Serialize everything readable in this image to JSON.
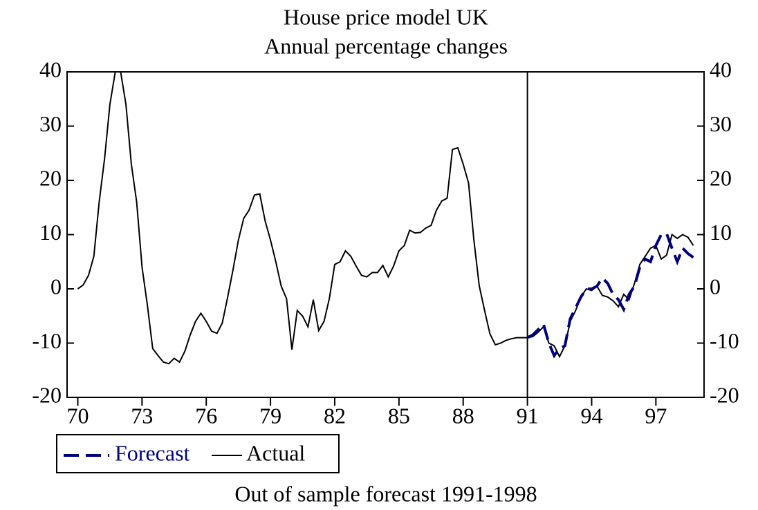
{
  "chart_data": {
    "type": "line",
    "title": "House price model UK",
    "subtitle": "Annual percentage changes",
    "caption": "Out of sample forecast 1991-1998",
    "x": [
      1970,
      1970.25,
      1970.5,
      1970.75,
      1971,
      1971.25,
      1971.5,
      1971.75,
      1972,
      1972.25,
      1972.5,
      1972.75,
      1973,
      1973.25,
      1973.5,
      1973.75,
      1974,
      1974.25,
      1974.5,
      1974.75,
      1975,
      1975.25,
      1975.5,
      1975.75,
      1976,
      1976.25,
      1976.5,
      1976.75,
      1977,
      1977.25,
      1977.5,
      1977.75,
      1978,
      1978.25,
      1978.5,
      1978.75,
      1979,
      1979.25,
      1979.5,
      1979.75,
      1980,
      1980.25,
      1980.5,
      1980.75,
      1981,
      1981.25,
      1981.5,
      1981.75,
      1982,
      1982.25,
      1982.5,
      1982.75,
      1983,
      1983.25,
      1983.5,
      1983.75,
      1984,
      1984.25,
      1984.5,
      1984.75,
      1985,
      1985.25,
      1985.5,
      1985.75,
      1986,
      1986.25,
      1986.5,
      1986.75,
      1987,
      1987.25,
      1987.5,
      1987.75,
      1988,
      1988.25,
      1988.5,
      1988.75,
      1989,
      1989.25,
      1989.5,
      1989.75,
      1990,
      1990.25,
      1990.5,
      1990.75,
      1991,
      1991.25,
      1991.5,
      1991.75,
      1992,
      1992.25,
      1992.5,
      1992.75,
      1993,
      1993.25,
      1993.5,
      1993.75,
      1994,
      1994.25,
      1994.5,
      1994.75,
      1995,
      1995.25,
      1995.5,
      1995.75,
      1996,
      1996.25,
      1996.5,
      1996.75,
      1997,
      1997.25,
      1997.5,
      1997.75,
      1998,
      1998.25,
      1998.5,
      1998.75
    ],
    "series": [
      {
        "name": "Forecast",
        "color": "#000080",
        "dashed": true,
        "values": [
          null,
          null,
          null,
          null,
          null,
          null,
          null,
          null,
          null,
          null,
          null,
          null,
          null,
          null,
          null,
          null,
          null,
          null,
          null,
          null,
          null,
          null,
          null,
          null,
          null,
          null,
          null,
          null,
          null,
          null,
          null,
          null,
          null,
          null,
          null,
          null,
          null,
          null,
          null,
          null,
          null,
          null,
          null,
          null,
          null,
          null,
          null,
          null,
          null,
          null,
          null,
          null,
          null,
          null,
          null,
          null,
          null,
          null,
          null,
          null,
          null,
          null,
          null,
          null,
          null,
          null,
          null,
          null,
          null,
          null,
          null,
          null,
          null,
          null,
          null,
          null,
          null,
          null,
          null,
          null,
          null,
          null,
          null,
          null,
          -9,
          -8.5,
          -7.5,
          -6.5,
          -10,
          -12.3,
          -11,
          -10.5,
          -5.5,
          -3.5,
          -1.5,
          0,
          0,
          0.5,
          2,
          1,
          -1,
          -2,
          -3.8,
          -1,
          0.5,
          4,
          5.5,
          5,
          8,
          10,
          10.2,
          7.5,
          5,
          7.5,
          6.5,
          5.8
        ]
      },
      {
        "name": "Actual",
        "color": "#000000",
        "dashed": false,
        "values": [
          0,
          0.7,
          2.5,
          6,
          16,
          24,
          34,
          40,
          40,
          34,
          23,
          16,
          4,
          -3,
          -11,
          -12.3,
          -13.5,
          -13.8,
          -12.8,
          -13.5,
          -11.5,
          -8.5,
          -6,
          -4.5,
          -6,
          -7.8,
          -8.2,
          -6.3,
          -1.5,
          3.5,
          9,
          13,
          14.5,
          17.3,
          17.5,
          12.5,
          9,
          5,
          0.5,
          -1.8,
          -11.2,
          -4,
          -5,
          -7,
          -2,
          -7.7,
          -6,
          -1.8,
          4.5,
          5,
          7,
          6,
          4.2,
          2.5,
          2.2,
          3,
          3,
          4.3,
          2.2,
          4.2,
          7,
          8,
          10.8,
          10.3,
          10.4,
          11.2,
          11.7,
          14.5,
          16.2,
          16.7,
          25.7,
          26,
          23,
          19.5,
          9,
          0.6,
          -4,
          -8.3,
          -10.3,
          -10,
          -9.5,
          -9.2,
          -9,
          -9,
          -9,
          -8.8,
          -8,
          -7,
          -10,
          -10.5,
          -12.5,
          -10.5,
          -6,
          -4,
          -1.5,
          0,
          -0.3,
          0.5,
          -1.2,
          -1.5,
          -2.2,
          -3.3,
          -1,
          -2,
          1,
          4.5,
          6,
          7.5,
          8,
          5.5,
          6.2,
          10,
          9.3,
          10,
          9.5,
          8
        ]
      }
    ],
    "xlim": [
      1969.5,
      1999.25
    ],
    "xticks": [
      {
        "value": 1970,
        "label": "70"
      },
      {
        "value": 1973,
        "label": "73"
      },
      {
        "value": 1976,
        "label": "76"
      },
      {
        "value": 1979,
        "label": "79"
      },
      {
        "value": 1982,
        "label": "82"
      },
      {
        "value": 1985,
        "label": "85"
      },
      {
        "value": 1988,
        "label": "88"
      },
      {
        "value": 1991,
        "label": "91"
      },
      {
        "value": 1994,
        "label": "94"
      },
      {
        "value": 1997,
        "label": "97"
      }
    ],
    "ylim": [
      -20,
      40
    ],
    "yticks": [
      -20,
      -10,
      0,
      10,
      20,
      30,
      40
    ],
    "y2lim": [
      -20,
      40
    ],
    "y2ticks": [
      -20,
      -10,
      0,
      10,
      20,
      30,
      40
    ],
    "vline": 1991
  }
}
